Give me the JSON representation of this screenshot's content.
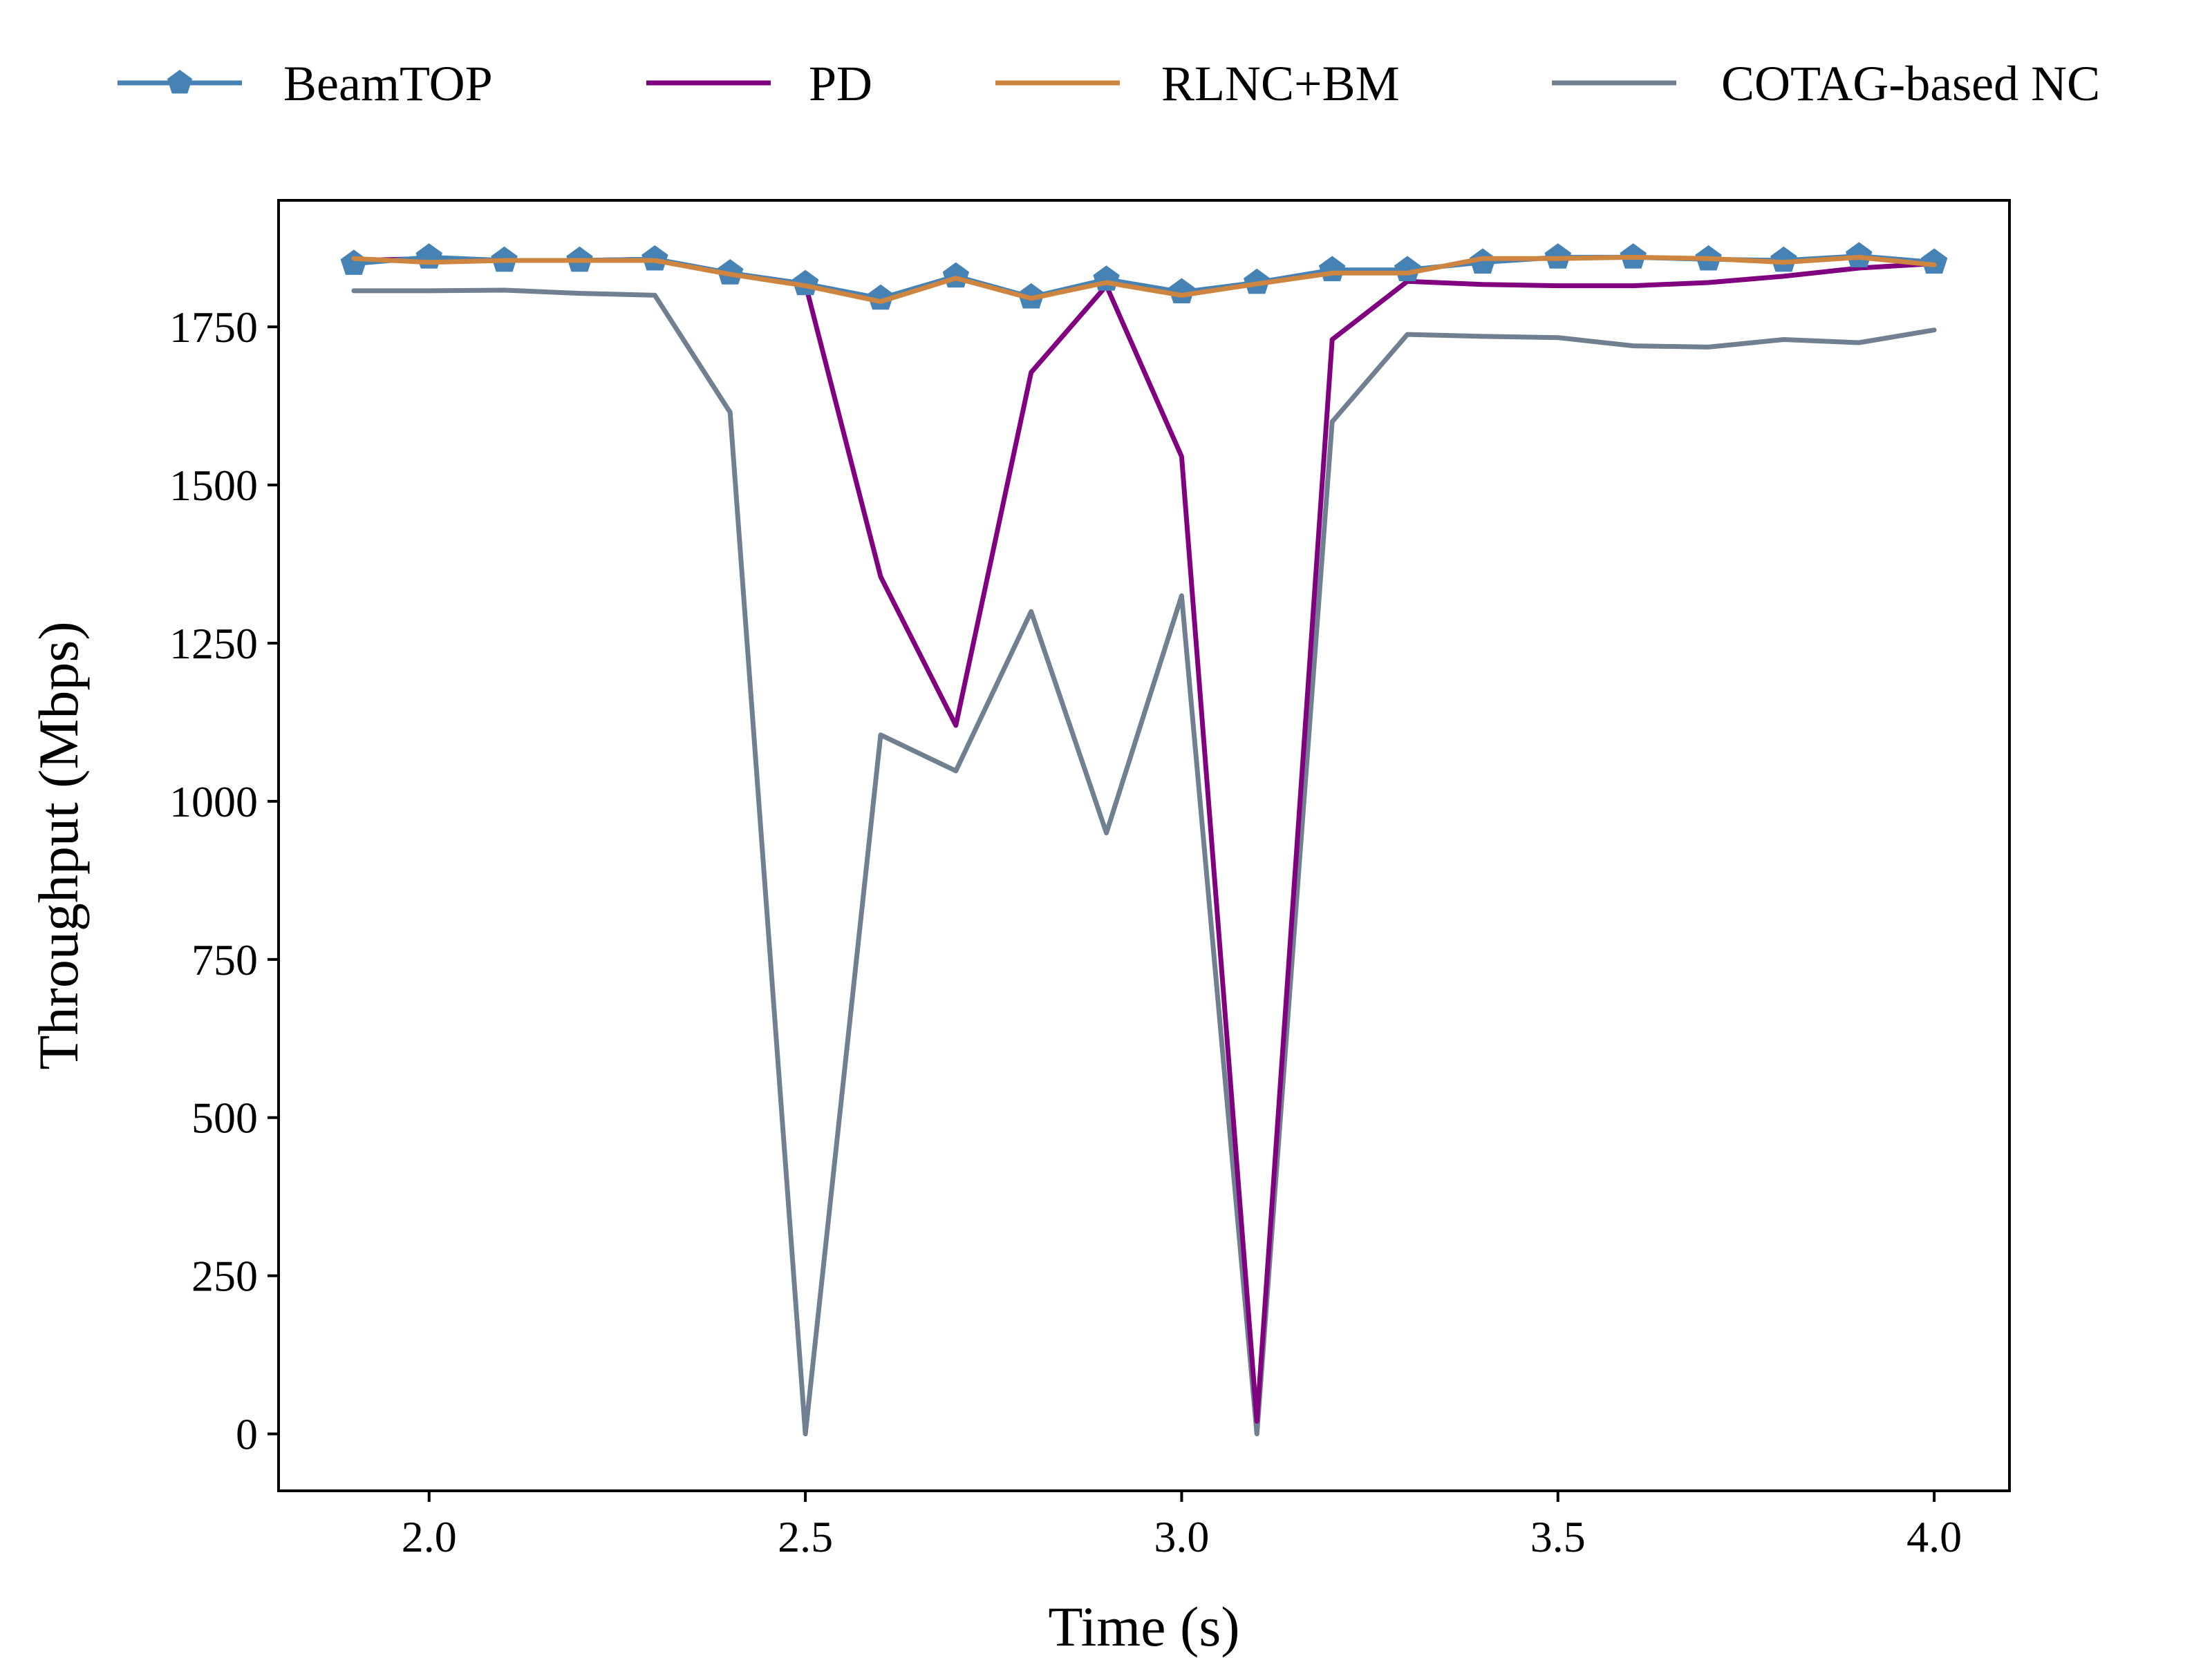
{
  "chart_data": {
    "type": "line",
    "xlabel": "Time (s)",
    "ylabel": "Throughput (Mbps)",
    "xlim": [
      1.8,
      4.1
    ],
    "ylim": [
      -90,
      1950
    ],
    "xticks": [
      2.0,
      2.5,
      3.0,
      3.5,
      4.0
    ],
    "xtick_labels": [
      "2.0",
      "2.5",
      "3.0",
      "3.5",
      "4.0"
    ],
    "yticks": [
      0,
      250,
      500,
      750,
      1000,
      1250,
      1500,
      1750
    ],
    "ytick_labels": [
      "0",
      "250",
      "500",
      "750",
      "1000",
      "1250",
      "1500",
      "1750"
    ],
    "grid": false,
    "legend_position": "top",
    "x": [
      1.9,
      2.0,
      2.1,
      2.2,
      2.3,
      2.4,
      2.5,
      2.6,
      2.7,
      2.8,
      2.9,
      3.0,
      3.1,
      3.2,
      3.3,
      3.4,
      3.5,
      3.6,
      3.7,
      3.8,
      3.9,
      4.0
    ],
    "series": [
      {
        "name": "BeamTOP",
        "color": "#4682b4",
        "marker": "pentagon",
        "values": [
          1850,
          1860,
          1855,
          1855,
          1857,
          1835,
          1818,
          1795,
          1830,
          1797,
          1825,
          1805,
          1820,
          1840,
          1840,
          1852,
          1860,
          1860,
          1857,
          1855,
          1862,
          1852
        ]
      },
      {
        "name": "PD",
        "color": "#800080",
        "marker": "none",
        "values": [
          1855,
          1858,
          1855,
          1855,
          1857,
          1835,
          1818,
          1355,
          1120,
          1678,
          1815,
          1545,
          20,
          1730,
          1822,
          1817,
          1815,
          1815,
          1820,
          1830,
          1843,
          1850
        ]
      },
      {
        "name": "RLNC+BM",
        "color": "#cd853f",
        "marker": "none",
        "values": [
          1858,
          1852,
          1855,
          1855,
          1855,
          1833,
          1815,
          1790,
          1827,
          1795,
          1820,
          1800,
          1818,
          1835,
          1835,
          1858,
          1858,
          1860,
          1858,
          1852,
          1860,
          1848
        ]
      },
      {
        "name": "COTAG-based NC",
        "color": "#708090",
        "marker": "none",
        "values": [
          1807,
          1807,
          1808,
          1803,
          1800,
          1615,
          0,
          1105,
          1048,
          1300,
          950,
          1325,
          0,
          1600,
          1738,
          1735,
          1733,
          1720,
          1718,
          1730,
          1725,
          1745
        ]
      }
    ]
  }
}
